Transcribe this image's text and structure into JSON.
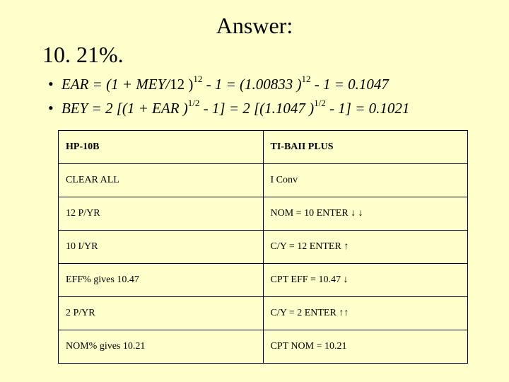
{
  "title": "Answer:",
  "subtitle": "10. 21%.",
  "formulas": {
    "ear": "EAR  =  (1 + MEY/12 )¹² - 1 = (1.00833 )¹² - 1 = 0.1047",
    "bey": "BEY  = 2 [(1 + EAR )¹ᐟ² - 1] = 2 [(1.1047 )¹ᐟ² - 1] = 0.1021"
  },
  "formula_parts": {
    "ear_prefix": "EAR  =  (1 + MEY/",
    "ear_div": "12 )",
    "ear_exp1": "12",
    "ear_mid1": " - 1 = (1.00833 )",
    "ear_exp2": "12",
    "ear_tail": " - 1 = 0.1047",
    "bey_prefix": "BEY  = 2 [(1 + EAR )",
    "bey_exp1": "1/2",
    "bey_mid1": " - 1] = 2 [(1.1047 )",
    "bey_exp2": "1/2",
    "bey_tail": " - 1] = 0.1021"
  },
  "table": {
    "header": {
      "left": "HP-10B",
      "right": "TI-BAII PLUS"
    },
    "rows": [
      {
        "left": "CLEAR ALL",
        "right": "I Conv"
      },
      {
        "left": "12  P/YR",
        "right": "NOM = 10 ENTER ↓ ↓"
      },
      {
        "left": "10 I/YR",
        "right": "C/Y = 12 ENTER ↑"
      },
      {
        "left": "EFF% gives 10.47",
        "right": "CPT EFF = 10.47 ↓"
      },
      {
        "left": "2 P/YR",
        "right": "C/Y = 2 ENTER ↑↑"
      },
      {
        "left": "NOM% gives 10.21",
        "right": "CPT NOM = 10.21"
      }
    ]
  },
  "colors": {
    "background": "#ffffcc",
    "text": "#000000",
    "border": "#000000"
  }
}
